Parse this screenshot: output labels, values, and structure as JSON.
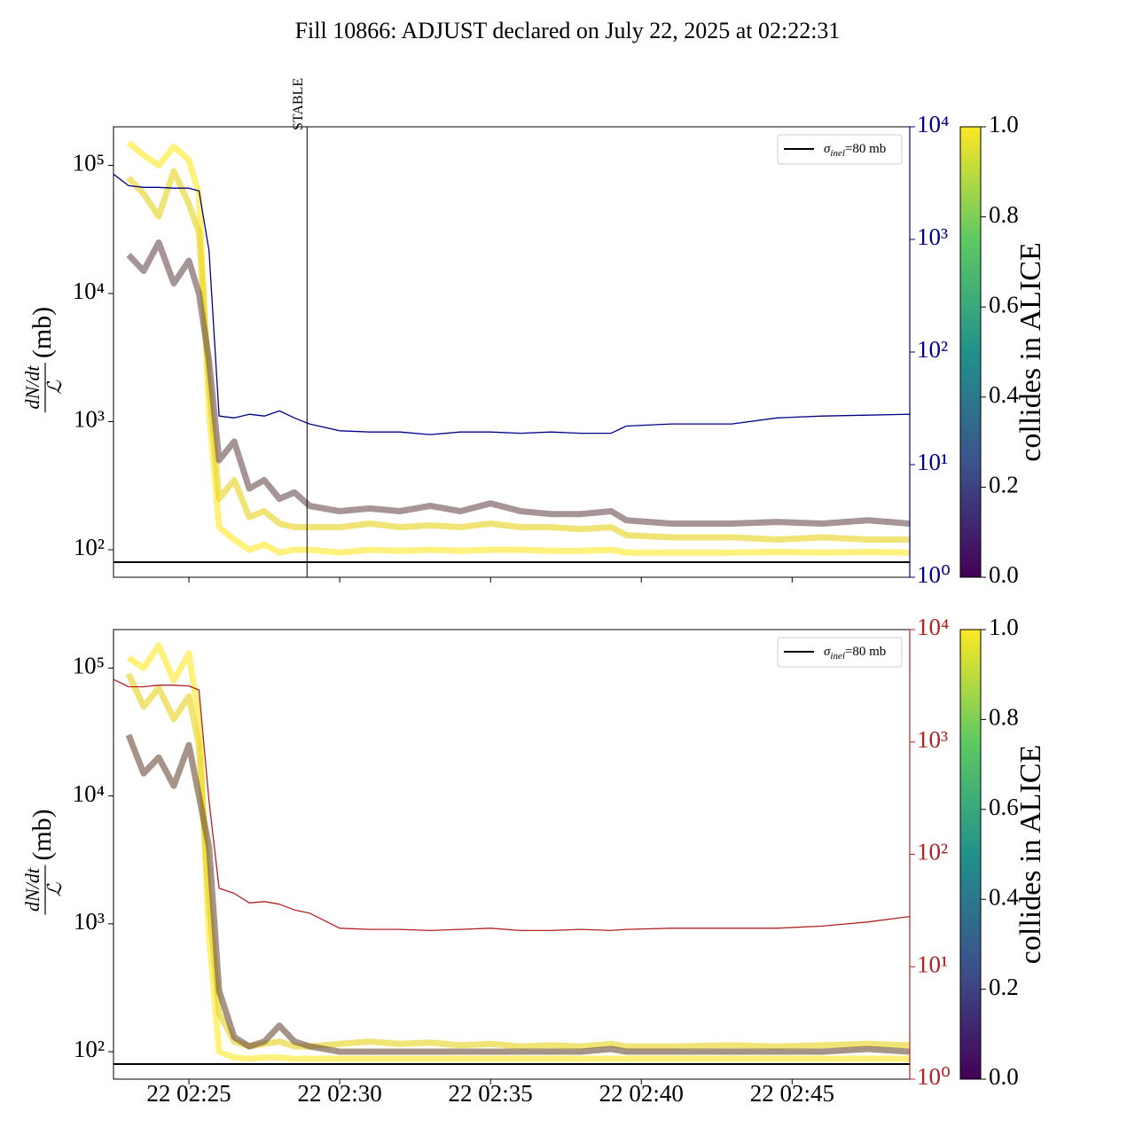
{
  "title": "Fill 10866: ADJUST declared on July 22, 2025 at 02:22:31",
  "chart_data": [
    {
      "type": "line",
      "ylabel": {
        "numerator": "dN/dt",
        "denominator": "ℒ",
        "unit": "(mb)"
      },
      "ylog": true,
      "ylim": [
        61,
        200000
      ],
      "yticks": [
        {
          "value": 100,
          "label": "10²"
        },
        {
          "value": 1000,
          "label": "10³"
        },
        {
          "value": 10000,
          "label": "10⁴"
        },
        {
          "value": 100000,
          "label": "10⁵"
        }
      ],
      "y2log": true,
      "y2lim": [
        1,
        10000
      ],
      "y2color": "#00008b",
      "y2ticks": [
        {
          "value": 1,
          "label": "10⁰"
        },
        {
          "value": 10,
          "label": "10¹"
        },
        {
          "value": 100,
          "label": "10²"
        },
        {
          "value": 1000,
          "label": "10³"
        },
        {
          "value": 10000,
          "label": "10⁴"
        }
      ],
      "xlim": [
        "22 02:22:30",
        "22 02:48:54"
      ],
      "xticks": [
        "22 02:25",
        "22 02:30",
        "22 02:35",
        "22 02:40",
        "22 02:45"
      ],
      "x": [
        "22 02:22:30",
        "22 02:23",
        "22 02:23:30",
        "22 02:24",
        "22 02:24:30",
        "22 02:25",
        "22 02:25:20",
        "22 02:25:40",
        "22 02:26",
        "22 02:26:30",
        "22 02:27",
        "22 02:27:30",
        "22 02:28",
        "22 02:28:30",
        "22 02:29",
        "22 02:30",
        "22 02:31",
        "22 02:32",
        "22 02:33",
        "22 02:34",
        "22 02:35",
        "22 02:36",
        "22 02:37",
        "22 02:38",
        "22 02:39",
        "22 02:39:30",
        "22 02:41",
        "22 02:43",
        "22 02:44:30",
        "22 02:46",
        "22 02:47:30",
        "22 02:48:54"
      ],
      "series": [
        {
          "color": "#fde725",
          "values": [
            null,
            150000,
            120000,
            100000,
            140000,
            110000,
            60000,
            1200,
            150,
            120,
            100,
            110,
            95,
            100,
            100,
            95,
            100,
            98,
            100,
            98,
            100,
            100,
            98,
            98,
            100,
            95,
            95,
            95,
            96,
            95,
            96,
            95
          ]
        },
        {
          "color": "#e8d21d",
          "values": [
            null,
            80000,
            60000,
            40000,
            90000,
            50000,
            30000,
            2000,
            250,
            350,
            180,
            200,
            160,
            150,
            150,
            150,
            160,
            150,
            155,
            150,
            160,
            150,
            150,
            145,
            150,
            130,
            125,
            125,
            120,
            125,
            120,
            120
          ]
        },
        {
          "color": "#6b4c50",
          "values": [
            null,
            20000,
            15000,
            25000,
            12000,
            18000,
            10000,
            3000,
            500,
            700,
            300,
            350,
            250,
            280,
            220,
            200,
            210,
            200,
            220,
            200,
            230,
            200,
            190,
            190,
            200,
            170,
            160,
            160,
            165,
            160,
            170,
            160
          ]
        },
        {
          "color": "#00008b",
          "axis": "y2",
          "values": [
            3800,
            3000,
            2900,
            2900,
            2850,
            2850,
            2700,
            800,
            27,
            26,
            28,
            27,
            30,
            26,
            23,
            20,
            19.5,
            19.5,
            18.5,
            19.5,
            19.5,
            19,
            19.5,
            19,
            19,
            22,
            23,
            23,
            26,
            27,
            27.5,
            28
          ]
        }
      ],
      "hline": 80,
      "legend": {
        "symbol": "σ",
        "subscript": "inel",
        "text": "=80 mb"
      },
      "annotation": {
        "text": "STABLE",
        "x": "22 02:28:55"
      },
      "colorbar": {
        "label": "collides in ALICE",
        "lim": [
          0,
          1
        ],
        "ticks": [
          {
            "value": 0,
            "label": "0.0"
          },
          {
            "value": 0.2,
            "label": "0.2"
          },
          {
            "value": 0.4,
            "label": "0.4"
          },
          {
            "value": 0.6,
            "label": "0.6"
          },
          {
            "value": 0.8,
            "label": "0.8"
          },
          {
            "value": 1,
            "label": "1.0"
          }
        ]
      }
    },
    {
      "type": "line",
      "ylabel": {
        "numerator": "dN/dt",
        "denominator": "ℒ",
        "unit": "(mb)"
      },
      "ylog": true,
      "ylim": [
        61,
        200000
      ],
      "yticks": [
        {
          "value": 100,
          "label": "10²"
        },
        {
          "value": 1000,
          "label": "10³"
        },
        {
          "value": 10000,
          "label": "10⁴"
        },
        {
          "value": 100000,
          "label": "10⁵"
        }
      ],
      "y2log": true,
      "y2lim": [
        1,
        10000
      ],
      "y2color": "#b22222",
      "y2ticks": [
        {
          "value": 1,
          "label": "10⁰"
        },
        {
          "value": 10,
          "label": "10¹"
        },
        {
          "value": 100,
          "label": "10²"
        },
        {
          "value": 1000,
          "label": "10³"
        },
        {
          "value": 10000,
          "label": "10⁴"
        }
      ],
      "xlim": [
        "22 02:22:30",
        "22 02:48:54"
      ],
      "xticks": [
        "22 02:25",
        "22 02:30",
        "22 02:35",
        "22 02:40",
        "22 02:45"
      ],
      "x": [
        "22 02:22:30",
        "22 02:23",
        "22 02:23:30",
        "22 02:24",
        "22 02:24:30",
        "22 02:25",
        "22 02:25:20",
        "22 02:25:40",
        "22 02:26",
        "22 02:26:30",
        "22 02:27",
        "22 02:27:30",
        "22 02:28",
        "22 02:28:30",
        "22 02:29",
        "22 02:30",
        "22 02:31",
        "22 02:32",
        "22 02:33",
        "22 02:34",
        "22 02:35",
        "22 02:36",
        "22 02:37",
        "22 02:38",
        "22 02:39",
        "22 02:39:30",
        "22 02:41",
        "22 02:43",
        "22 02:44:30",
        "22 02:46",
        "22 02:47:30",
        "22 02:48:54"
      ],
      "series": [
        {
          "color": "#fde725",
          "values": [
            null,
            120000,
            100000,
            150000,
            80000,
            130000,
            40000,
            800,
            100,
            90,
            88,
            90,
            90,
            88,
            88,
            88,
            88,
            88,
            88,
            88,
            88,
            88,
            88,
            88,
            88,
            88,
            88,
            88,
            88,
            88,
            88,
            88
          ]
        },
        {
          "color": "#e8d21d",
          "values": [
            null,
            90000,
            50000,
            70000,
            40000,
            60000,
            25000,
            1500,
            200,
            120,
            110,
            115,
            120,
            110,
            110,
            115,
            120,
            115,
            118,
            112,
            115,
            110,
            112,
            110,
            115,
            110,
            110,
            112,
            110,
            112,
            115,
            112
          ]
        },
        {
          "color": "#6b4c3b",
          "values": [
            null,
            30000,
            15000,
            20000,
            12000,
            25000,
            10000,
            4000,
            300,
            130,
            110,
            120,
            160,
            120,
            110,
            100,
            100,
            100,
            100,
            100,
            100,
            100,
            100,
            100,
            105,
            100,
            100,
            100,
            100,
            100,
            105,
            100
          ]
        },
        {
          "color": "#b22222",
          "axis": "y2",
          "values": [
            3600,
            3100,
            3100,
            3200,
            3200,
            3150,
            2900,
            300,
            50,
            45,
            37,
            38,
            36,
            32,
            30,
            22,
            21.5,
            21.5,
            21,
            21.5,
            22,
            21,
            21,
            21.5,
            21,
            21.5,
            22,
            22,
            22,
            23,
            25,
            28
          ]
        }
      ],
      "hline": 80,
      "legend": {
        "symbol": "σ",
        "subscript": "inel",
        "text": "=80 mb"
      },
      "colorbar": {
        "label": "collides in ALICE",
        "lim": [
          0,
          1
        ],
        "ticks": [
          {
            "value": 0,
            "label": "0.0"
          },
          {
            "value": 0.2,
            "label": "0.2"
          },
          {
            "value": 0.4,
            "label": "0.4"
          },
          {
            "value": 0.6,
            "label": "0.6"
          },
          {
            "value": 0.8,
            "label": "0.8"
          },
          {
            "value": 1,
            "label": "1.0"
          }
        ]
      }
    }
  ]
}
